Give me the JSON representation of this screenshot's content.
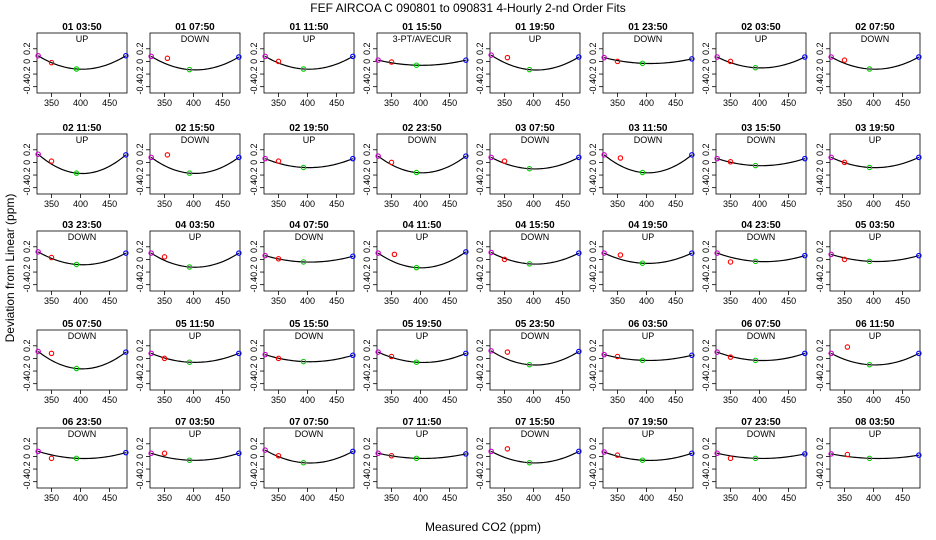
{
  "chart_data": {
    "type": "scatter",
    "title": "FEF   AIRCOA C   090801 to 090831   4-Hourly 2-nd Order Fits",
    "xlabel": "Measured CO2 (ppm)",
    "ylabel": "Deviation from Linear (ppm)",
    "xlim": [
      325,
      480
    ],
    "ylim": [
      -0.5,
      0.45
    ],
    "xticks": [
      "350",
      "400",
      "450"
    ],
    "yticks": [
      "0.2",
      "0",
      "-0.2",
      "-0.4"
    ],
    "grid": false,
    "legend": "none",
    "colors": {
      "low": "#cc00cc",
      "mid": "#ff0000",
      "ref": "#00cc00",
      "high": "#0000ff",
      "fit": "#000000"
    },
    "panels": [
      {
        "title": "01 03:50",
        "subtitle": "UP",
        "points": [
          [
            327,
            0.09
          ],
          [
            350,
            -0.02
          ],
          [
            393,
            -0.12
          ],
          [
            478,
            0.09
          ]
        ]
      },
      {
        "title": "01 07:50",
        "subtitle": "DOWN",
        "points": [
          [
            327,
            0.08
          ],
          [
            355,
            0.05
          ],
          [
            393,
            -0.13
          ],
          [
            478,
            0.07
          ]
        ]
      },
      {
        "title": "01 11:50",
        "subtitle": "UP",
        "points": [
          [
            327,
            0.08
          ],
          [
            350,
            0.0
          ],
          [
            393,
            -0.12
          ],
          [
            478,
            0.08
          ]
        ]
      },
      {
        "title": "01 15:50",
        "subtitle": "3-PT/AVECUR",
        "points": [
          [
            327,
            0.02
          ],
          [
            350,
            -0.01
          ],
          [
            393,
            -0.06
          ],
          [
            478,
            0.02
          ]
        ]
      },
      {
        "title": "01 19:50",
        "subtitle": "UP",
        "points": [
          [
            327,
            0.1
          ],
          [
            355,
            0.06
          ],
          [
            393,
            -0.13
          ],
          [
            478,
            0.07
          ]
        ]
      },
      {
        "title": "01 23:50",
        "subtitle": "DOWN",
        "points": [
          [
            327,
            0.06
          ],
          [
            350,
            0.0
          ],
          [
            393,
            -0.03
          ],
          [
            478,
            0.04
          ]
        ]
      },
      {
        "title": "02 03:50",
        "subtitle": "UP",
        "points": [
          [
            327,
            0.07
          ],
          [
            350,
            0.0
          ],
          [
            393,
            -0.1
          ],
          [
            478,
            0.07
          ]
        ]
      },
      {
        "title": "02 07:50",
        "subtitle": "DOWN",
        "points": [
          [
            327,
            0.07
          ],
          [
            350,
            0.02
          ],
          [
            393,
            -0.12
          ],
          [
            478,
            0.07
          ]
        ]
      },
      {
        "title": "02 11:50",
        "subtitle": "UP",
        "points": [
          [
            327,
            0.13
          ],
          [
            350,
            0.02
          ],
          [
            393,
            -0.17
          ],
          [
            478,
            0.12
          ]
        ]
      },
      {
        "title": "02 15:50",
        "subtitle": "DOWN",
        "points": [
          [
            327,
            0.08
          ],
          [
            355,
            0.12
          ],
          [
            393,
            -0.17
          ],
          [
            478,
            0.08
          ]
        ]
      },
      {
        "title": "02 19:50",
        "subtitle": "UP",
        "points": [
          [
            327,
            0.06
          ],
          [
            350,
            0.02
          ],
          [
            393,
            -0.08
          ],
          [
            478,
            0.06
          ]
        ]
      },
      {
        "title": "02 23:50",
        "subtitle": "DOWN",
        "points": [
          [
            327,
            0.1
          ],
          [
            350,
            0.0
          ],
          [
            393,
            -0.16
          ],
          [
            478,
            0.1
          ]
        ]
      },
      {
        "title": "03 07:50",
        "subtitle": "DOWN",
        "points": [
          [
            327,
            0.08
          ],
          [
            350,
            0.02
          ],
          [
            393,
            -0.1
          ],
          [
            478,
            0.08
          ]
        ]
      },
      {
        "title": "03 11:50",
        "subtitle": "DOWN",
        "points": [
          [
            327,
            0.12
          ],
          [
            355,
            0.07
          ],
          [
            393,
            -0.16
          ],
          [
            478,
            0.12
          ]
        ]
      },
      {
        "title": "03 15:50",
        "subtitle": "DOWN",
        "points": [
          [
            327,
            0.06
          ],
          [
            350,
            0.01
          ],
          [
            393,
            -0.05
          ],
          [
            478,
            0.06
          ]
        ]
      },
      {
        "title": "03 19:50",
        "subtitle": "UP",
        "points": [
          [
            327,
            0.08
          ],
          [
            350,
            0.0
          ],
          [
            393,
            -0.08
          ],
          [
            478,
            0.08
          ]
        ]
      },
      {
        "title": "03 23:50",
        "subtitle": "DOWN",
        "points": [
          [
            327,
            0.12
          ],
          [
            350,
            0.03
          ],
          [
            393,
            -0.08
          ],
          [
            478,
            0.1
          ]
        ]
      },
      {
        "title": "04 03:50",
        "subtitle": "UP",
        "points": [
          [
            327,
            0.1
          ],
          [
            350,
            0.04
          ],
          [
            393,
            -0.12
          ],
          [
            478,
            0.1
          ]
        ]
      },
      {
        "title": "04 07:50",
        "subtitle": "DOWN",
        "points": [
          [
            327,
            0.06
          ],
          [
            350,
            0.01
          ],
          [
            393,
            -0.04
          ],
          [
            478,
            0.05
          ]
        ]
      },
      {
        "title": "04 11:50",
        "subtitle": "UP",
        "points": [
          [
            327,
            0.1
          ],
          [
            355,
            0.08
          ],
          [
            393,
            -0.13
          ],
          [
            478,
            0.12
          ]
        ]
      },
      {
        "title": "04 15:50",
        "subtitle": "DOWN",
        "points": [
          [
            327,
            0.11
          ],
          [
            350,
            0.0
          ],
          [
            393,
            -0.07
          ],
          [
            478,
            0.1
          ]
        ]
      },
      {
        "title": "04 19:50",
        "subtitle": "UP",
        "points": [
          [
            327,
            0.1
          ],
          [
            355,
            0.07
          ],
          [
            393,
            -0.06
          ],
          [
            478,
            0.1
          ]
        ]
      },
      {
        "title": "04 23:50",
        "subtitle": "DOWN",
        "points": [
          [
            327,
            0.1
          ],
          [
            350,
            -0.04
          ],
          [
            393,
            -0.03
          ],
          [
            478,
            0.06
          ]
        ]
      },
      {
        "title": "05 03:50",
        "subtitle": "UP",
        "points": [
          [
            327,
            0.08
          ],
          [
            350,
            0.0
          ],
          [
            393,
            -0.03
          ],
          [
            478,
            0.06
          ]
        ]
      },
      {
        "title": "05 07:50",
        "subtitle": "DOWN",
        "points": [
          [
            327,
            0.11
          ],
          [
            350,
            0.08
          ],
          [
            393,
            -0.16
          ],
          [
            478,
            0.1
          ]
        ]
      },
      {
        "title": "05 11:50",
        "subtitle": "UP",
        "points": [
          [
            327,
            0.08
          ],
          [
            350,
            0.0
          ],
          [
            393,
            -0.06
          ],
          [
            478,
            0.08
          ]
        ]
      },
      {
        "title": "05 15:50",
        "subtitle": "DOWN",
        "points": [
          [
            327,
            0.06
          ],
          [
            350,
            0.0
          ],
          [
            393,
            -0.05
          ],
          [
            478,
            0.05
          ]
        ]
      },
      {
        "title": "05 19:50",
        "subtitle": "UP",
        "points": [
          [
            327,
            0.1
          ],
          [
            350,
            0.03
          ],
          [
            393,
            -0.06
          ],
          [
            478,
            0.08
          ]
        ]
      },
      {
        "title": "05 23:50",
        "subtitle": "DOWN",
        "points": [
          [
            327,
            0.12
          ],
          [
            355,
            0.1
          ],
          [
            393,
            -0.1
          ],
          [
            478,
            0.11
          ]
        ]
      },
      {
        "title": "06 03:50",
        "subtitle": "UP",
        "points": [
          [
            327,
            0.06
          ],
          [
            350,
            0.03
          ],
          [
            393,
            -0.03
          ],
          [
            478,
            0.05
          ]
        ]
      },
      {
        "title": "06 07:50",
        "subtitle": "DOWN",
        "points": [
          [
            327,
            0.1
          ],
          [
            350,
            0.02
          ],
          [
            393,
            -0.03
          ],
          [
            478,
            0.08
          ]
        ]
      },
      {
        "title": "06 11:50",
        "subtitle": "UP",
        "points": [
          [
            327,
            0.08
          ],
          [
            355,
            0.18
          ],
          [
            393,
            -0.1
          ],
          [
            478,
            0.08
          ]
        ]
      },
      {
        "title": "06 23:50",
        "subtitle": "DOWN",
        "points": [
          [
            327,
            0.08
          ],
          [
            350,
            -0.03
          ],
          [
            393,
            -0.03
          ],
          [
            478,
            0.06
          ]
        ]
      },
      {
        "title": "07 03:50",
        "subtitle": "UP",
        "points": [
          [
            327,
            0.05
          ],
          [
            350,
            0.05
          ],
          [
            393,
            -0.06
          ],
          [
            478,
            0.05
          ]
        ]
      },
      {
        "title": "07 07:50",
        "subtitle": "DOWN",
        "points": [
          [
            327,
            0.1
          ],
          [
            350,
            0.01
          ],
          [
            393,
            -0.1
          ],
          [
            478,
            0.08
          ]
        ]
      },
      {
        "title": "07 11:50",
        "subtitle": "UP",
        "points": [
          [
            327,
            0.05
          ],
          [
            350,
            0.01
          ],
          [
            393,
            -0.03
          ],
          [
            478,
            0.04
          ]
        ]
      },
      {
        "title": "07 15:50",
        "subtitle": "DOWN",
        "points": [
          [
            327,
            0.08
          ],
          [
            355,
            0.12
          ],
          [
            393,
            -0.1
          ],
          [
            478,
            0.08
          ]
        ]
      },
      {
        "title": "07 19:50",
        "subtitle": "UP",
        "points": [
          [
            327,
            0.07
          ],
          [
            350,
            0.02
          ],
          [
            393,
            -0.06
          ],
          [
            478,
            0.05
          ]
        ]
      },
      {
        "title": "07 23:50",
        "subtitle": "DOWN",
        "points": [
          [
            327,
            0.05
          ],
          [
            350,
            -0.03
          ],
          [
            393,
            -0.03
          ],
          [
            478,
            0.04
          ]
        ]
      },
      {
        "title": "08 03:50",
        "subtitle": "UP",
        "points": [
          [
            327,
            0.04
          ],
          [
            355,
            0.03
          ],
          [
            393,
            -0.03
          ],
          [
            478,
            0.02
          ]
        ]
      }
    ]
  }
}
